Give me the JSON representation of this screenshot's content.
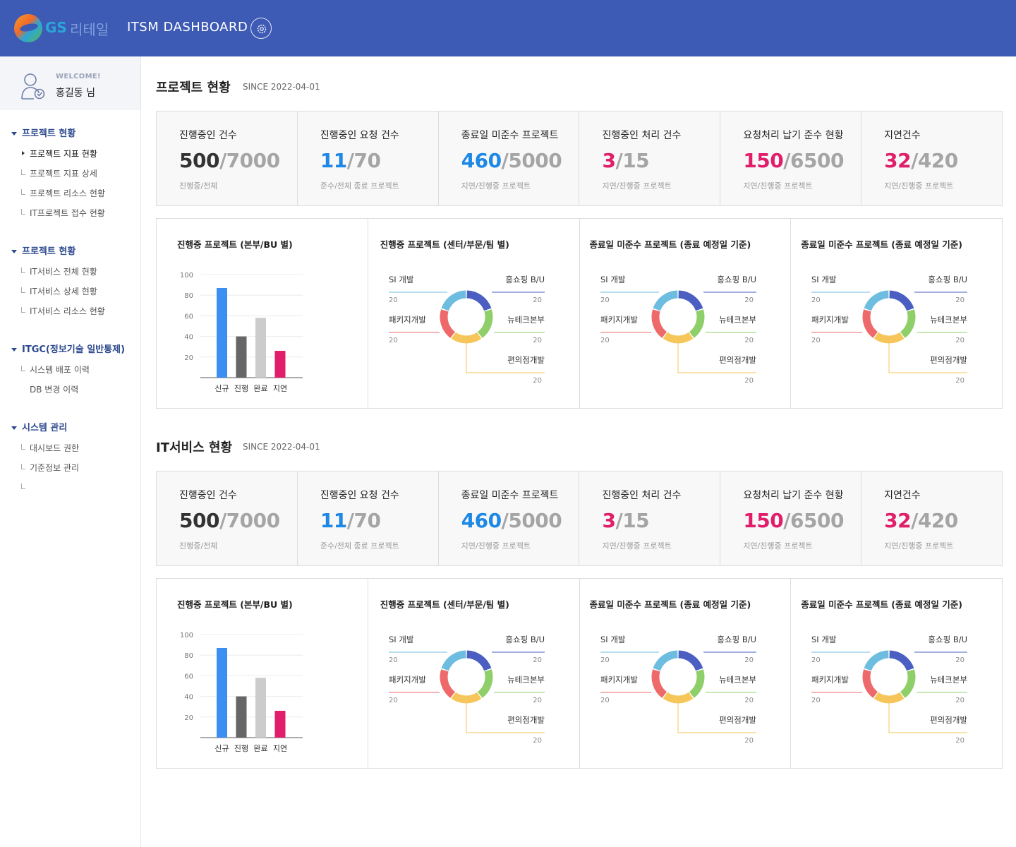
{
  "header": {
    "logo_gs": "GS",
    "logo_kr": "리테일",
    "title": "ITSM DASHBOARD"
  },
  "user": {
    "welcome": "WELCOME!",
    "name": "홍길동 님"
  },
  "nav": [
    {
      "label": "프로젝트 현황",
      "items": [
        "프로젝트 지표 현황",
        "프로젝트 지표 상세",
        "프로젝트 리소스 현황",
        "IT프로젝트 접수 현황"
      ]
    },
    {
      "label": "프로젝트 현황",
      "items": [
        "IT서비스 전체 현황",
        "IT서비스 상세 현황",
        "IT서비스 리소스 현황"
      ]
    },
    {
      "label": "ITGC(정보기술 일반통제)",
      "items": [
        "시스템 배포 이력",
        "DB 변경 이력"
      ]
    },
    {
      "label": "시스템 관리",
      "items": [
        "대시보드 권한",
        "기준정보 관리",
        ""
      ]
    }
  ],
  "sections": [
    {
      "title": "프로젝트 현황",
      "since": "SINCE 2022-04-01",
      "kpis": [
        {
          "title": "진행중인 건수",
          "value": "500",
          "total": "/7000",
          "sub": "진행중/전체",
          "color": "#333333"
        },
        {
          "title": "진행중인 요청 건수",
          "value": "11",
          "total": "/70",
          "sub": "준수/전체 종료 프로젝트",
          "color": "#1e88e5"
        },
        {
          "title": "종료일 미준수 프로젝트",
          "value": "460",
          "total": "/5000",
          "sub": "지연/진행중 프로젝트",
          "color": "#1e88e5"
        },
        {
          "title": "진행중인 처리 건수",
          "value": "3",
          "total": "/15",
          "sub": "지연/진행중 프로젝트",
          "color": "#e01e6a"
        },
        {
          "title": "요청처리 납기 준수 현황",
          "value": "150",
          "total": "/6500",
          "sub": "지연/진행중 프로젝트",
          "color": "#e01e6a"
        },
        {
          "title": "지연건수",
          "value": "32",
          "total": "/420",
          "sub": "지연/진행중 프로젝트",
          "color": "#e01e6a"
        }
      ],
      "charts": [
        {
          "title": "진행중 프로젝트 (본부/BU 별)"
        },
        {
          "title": "진행중 프로젝트 (센터/부문/팀 별)"
        },
        {
          "title": "종료일 미준수 프로젝트 (종료 예정일 기준)"
        },
        {
          "title": "종료일 미준수 프로젝트 (종료 예정일 기준)"
        }
      ]
    },
    {
      "title": "IT서비스 현황",
      "since": "SINCE 2022-04-01",
      "kpis": [
        {
          "title": "진행중인 건수",
          "value": "500",
          "total": "/7000",
          "sub": "진행중/전체",
          "color": "#333333"
        },
        {
          "title": "진행중인 요청 건수",
          "value": "11",
          "total": "/70",
          "sub": "준수/전체 종료 프로젝트",
          "color": "#1e88e5"
        },
        {
          "title": "종료일 미준수 프로젝트",
          "value": "460",
          "total": "/5000",
          "sub": "지연/진행중 프로젝트",
          "color": "#1e88e5"
        },
        {
          "title": "진행중인 처리 건수",
          "value": "3",
          "total": "/15",
          "sub": "지연/진행중 프로젝트",
          "color": "#e01e6a"
        },
        {
          "title": "요청처리 납기 준수 현황",
          "value": "150",
          "total": "/6500",
          "sub": "지연/진행중 프로젝트",
          "color": "#e01e6a"
        },
        {
          "title": "지연건수",
          "value": "32",
          "total": "/420",
          "sub": "지연/진행중 프로젝트",
          "color": "#e01e6a"
        }
      ],
      "charts": [
        {
          "title": "진행중 프로젝트 (본부/BU 별)"
        },
        {
          "title": "진행중 프로젝트 (센터/부문/팀 별)"
        },
        {
          "title": "종료일 미준수 프로젝트 (종료 예정일 기준)"
        },
        {
          "title": "종료일 미준수 프로젝트 (종료 예정일 기준)"
        }
      ]
    }
  ],
  "chart_data": [
    {
      "type": "bar",
      "categories": [
        "신규",
        "진행",
        "완료",
        "지연"
      ],
      "values": [
        87,
        40,
        58,
        26
      ],
      "colors": [
        "#3c8ef0",
        "#666666",
        "#cccccc",
        "#e01e6a"
      ],
      "yticks": [
        20,
        40,
        60,
        80,
        100
      ],
      "ylim": [
        0,
        100
      ],
      "grid": true
    },
    {
      "type": "pie",
      "donut": true,
      "slices": [
        {
          "label": "홍쇼핑 B/U",
          "value": 20,
          "color": "#4a5fc1"
        },
        {
          "label": "뉴테크본부",
          "value": 20,
          "color": "#8fcf6a"
        },
        {
          "label": "편의점개발",
          "value": 20,
          "color": "#f7c65a"
        },
        {
          "label": "패키지개발",
          "value": 20,
          "color": "#ee6a6a"
        },
        {
          "label": "SI 개발",
          "value": 20,
          "color": "#6cbde0"
        }
      ]
    }
  ]
}
